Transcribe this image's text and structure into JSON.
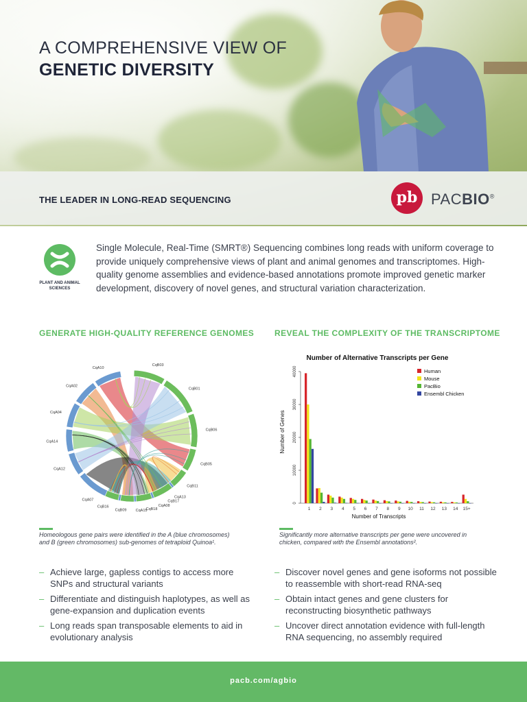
{
  "hero": {
    "headline_line1": "A COMPREHENSIVE VIEW OF",
    "headline_line2": "GENETIC DIVERSITY",
    "band_title": "THE LEADER IN LONG-READ SEQUENCING",
    "logo_mark": "pb",
    "logo_word_light": "PAC",
    "logo_word_bold": "BIO",
    "logo_reg": "®"
  },
  "category": {
    "label": "PLANT AND ANIMAL SCIENCES",
    "icon": "dna-cross-icon"
  },
  "intro": "Single Molecule, Real-Time (SMRT®) Sequencing combines long reads with uniform coverage to provide uniquely comprehensive views of plant and animal genomes and transcriptomes. High-quality genome assemblies and evidence-based annotations promote improved genetic marker development, discovery of novel genes, and structural variation characterization.",
  "left": {
    "heading": "GENERATE HIGH-QUALITY REFERENCE GENOMES",
    "caption_line1": "Homeologous gene pairs were identified in the A (blue chromosomes)",
    "caption_line2": "and B (green chromosomes) sub-genomes of tetraploid Quinoa¹.",
    "bullets": [
      "Achieve large, gapless contigs to access more SNPs and structural variants",
      "Differentiate and distinguish haplotypes, as well as gene-expansion and duplication events",
      "Long reads span transposable elements to aid in evolutionary analysis"
    ]
  },
  "right": {
    "heading": "REVEAL THE COMPLEXITY OF THE TRANSCRIPTOME",
    "caption_line1": "Significantly more alternative transcripts per gene were uncovered in",
    "caption_line2": "chicken, compared with the Ensembl annotations².",
    "bullets": [
      "Discover novel genes and gene isoforms not possible to reassemble with short-read RNA-seq",
      "Obtain intact genes and gene clusters for reconstructing biosynthetic pathways",
      "Uncover direct annotation evidence with full-length RNA sequencing, no assembly required"
    ]
  },
  "circos": {
    "chromosomes_a": [
      "CqA10",
      "CqA02",
      "CqA04",
      "CqA14",
      "CqA12",
      "CqA07",
      "CqA15",
      "CqA08",
      "CqA13"
    ],
    "chromosomes_b": [
      "CqB03",
      "CqB01",
      "CqB06",
      "CqB05",
      "CqB11",
      "CqB17",
      "CqB18",
      "CqB09",
      "CqB16"
    ],
    "color_a": "#6a9ad0",
    "color_b": "#6cbd5c"
  },
  "chart_data": {
    "type": "bar",
    "title": "Number of Alternative Transcripts per Gene",
    "xlabel": "Number of Transcripts",
    "ylabel": "Number of Genes",
    "categories": [
      "1",
      "2",
      "3",
      "4",
      "5",
      "6",
      "7",
      "8",
      "9",
      "10",
      "11",
      "12",
      "13",
      "14",
      "15+"
    ],
    "yticks": [
      "0",
      "10000",
      "20000",
      "30000",
      "40000"
    ],
    "ylim": [
      0,
      40000
    ],
    "legend_position": "top-right",
    "series": [
      {
        "name": "Human",
        "color": "#d7262b",
        "values": [
          39500,
          4500,
          2600,
          2000,
          1600,
          1300,
          1100,
          900,
          800,
          700,
          600,
          500,
          450,
          400,
          2600
        ]
      },
      {
        "name": "Mouse",
        "color": "#f2e41a",
        "values": [
          30000,
          4600,
          2300,
          1700,
          1300,
          1000,
          800,
          650,
          550,
          450,
          400,
          330,
          280,
          250,
          1300
        ]
      },
      {
        "name": "PacBio",
        "color": "#55b533",
        "values": [
          19500,
          3200,
          1700,
          1300,
          1000,
          800,
          650,
          550,
          450,
          380,
          330,
          280,
          250,
          220,
          600
        ]
      },
      {
        "name": "Ensembl Chicken",
        "color": "#3346a0",
        "values": [
          16500,
          400,
          150,
          80,
          50,
          30,
          20,
          15,
          10,
          8,
          6,
          5,
          4,
          3,
          10
        ]
      }
    ]
  },
  "footer": {
    "url": "pacb.com/agbio"
  }
}
